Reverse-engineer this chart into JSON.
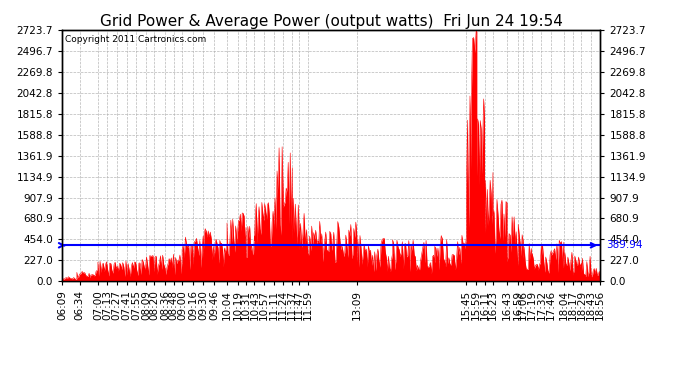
{
  "title": "Grid Power & Average Power (output watts)  Fri Jun 24 19:54",
  "copyright": "Copyright 2011 Cartronics.com",
  "avg_line_value": 389.94,
  "ymax": 2723.7,
  "yticks": [
    0.0,
    227.0,
    454.0,
    680.9,
    907.9,
    1134.9,
    1361.9,
    1588.8,
    1815.8,
    2042.8,
    2269.8,
    2496.7,
    2723.7
  ],
  "xtick_labels": [
    "06:09",
    "06:34",
    "07:00",
    "07:13",
    "07:27",
    "07:41",
    "07:55",
    "08:09",
    "08:20",
    "08:36",
    "08:48",
    "09:00",
    "09:16",
    "09:30",
    "09:46",
    "10:04",
    "10:19",
    "10:31",
    "10:43",
    "10:57",
    "11:11",
    "11:24",
    "11:37",
    "11:47",
    "11:59",
    "13:09",
    "15:45",
    "15:59",
    "16:11",
    "16:23",
    "16:43",
    "16:59",
    "17:06",
    "17:19",
    "17:32",
    "17:46",
    "18:04",
    "18:17",
    "18:29",
    "18:43",
    "18:56"
  ],
  "bar_color": "#ff0000",
  "avg_line_color": "#0000ff",
  "background_color": "#ffffff",
  "grid_color": "#b0b0b0",
  "title_fontsize": 11,
  "tick_fontsize": 7.5,
  "fig_width": 6.9,
  "fig_height": 3.75,
  "dpi": 100
}
